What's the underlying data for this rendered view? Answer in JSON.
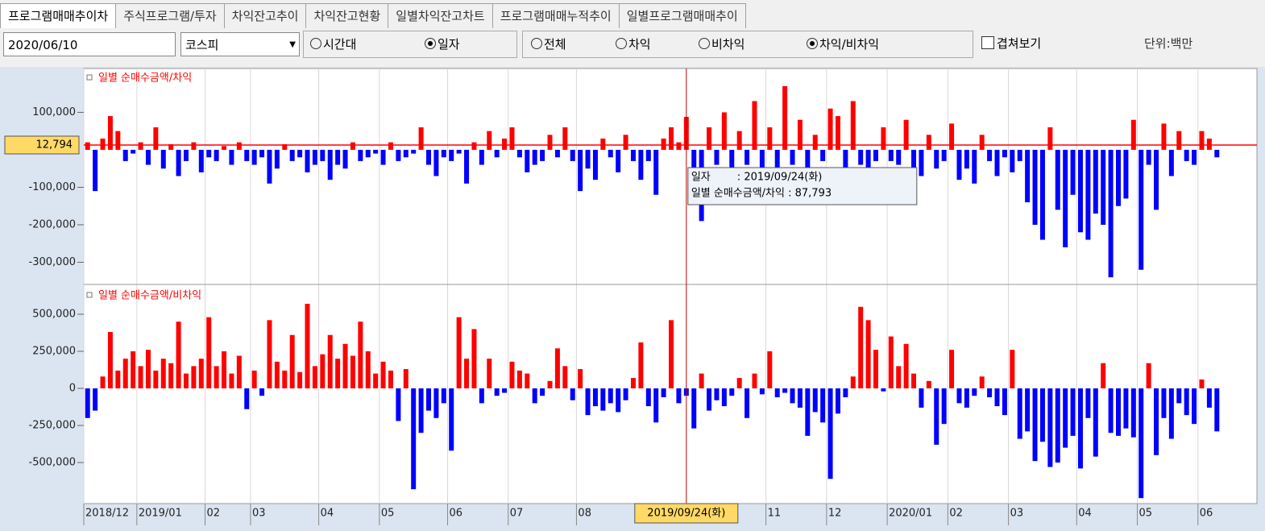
{
  "tabs": [
    "프로그램매매추이차",
    "주식프로그램/투자",
    "차익잔고추이",
    "차익잔고현황",
    "일별차익잔고차트",
    "프로그램매매누적추이",
    "일별프로그램매매추이"
  ],
  "controls": {
    "date": "2020/06/10",
    "market": "코스피",
    "period_options": [
      "시간대",
      "일자"
    ],
    "type_options": [
      "전체",
      "차익",
      "비차익",
      "차익/비차익"
    ],
    "overlay": "겹쳐보기",
    "unit": "단위:백만"
  },
  "chart_data": [
    {
      "type": "bar",
      "title": "일별 순매수금액/차익",
      "positive_color": "#ff0000",
      "negative_color": "#0000ff",
      "ylim": [
        -357000,
        217000
      ],
      "yticks": [
        {
          "value": 100000,
          "label": "100,000"
        },
        {
          "value": -100000,
          "label": "-100,000"
        },
        {
          "value": -200000,
          "label": "-200,000"
        },
        {
          "value": -300000,
          "label": "-300,000"
        }
      ],
      "current_value": 12794,
      "current_value_label": "12,794",
      "annotation": {
        "x_label": "2019/09/24(화)",
        "tooltip": [
          "일자        : 2019/09/24(화)",
          "일별 순매수금액/차익 : 87,793"
        ]
      },
      "values": [
        20000,
        -110000,
        30000,
        90000,
        50000,
        -30000,
        -10000,
        20000,
        -40000,
        60000,
        -50000,
        15000,
        -70000,
        -30000,
        20000,
        -60000,
        -20000,
        -30000,
        10000,
        -40000,
        20000,
        -30000,
        -40000,
        -20000,
        -90000,
        -50000,
        15000,
        -30000,
        -20000,
        -60000,
        -40000,
        -30000,
        -80000,
        -40000,
        -50000,
        20000,
        -30000,
        -20000,
        -10000,
        -40000,
        20000,
        -30000,
        -20000,
        -10000,
        60000,
        -40000,
        -70000,
        -20000,
        -30000,
        -10000,
        -90000,
        20000,
        -40000,
        50000,
        -20000,
        30000,
        60000,
        -20000,
        -60000,
        -40000,
        -30000,
        40000,
        -20000,
        60000,
        -30000,
        -110000,
        -50000,
        -80000,
        30000,
        -20000,
        -60000,
        40000,
        -30000,
        -80000,
        -30000,
        -120000,
        30000,
        60000,
        20000,
        87793,
        -50000,
        -190000,
        60000,
        -40000,
        100000,
        -50000,
        50000,
        -40000,
        130000,
        -60000,
        60000,
        -50000,
        170000,
        -40000,
        80000,
        -60000,
        40000,
        -30000,
        110000,
        90000,
        -60000,
        130000,
        -40000,
        -50000,
        -30000,
        60000,
        -30000,
        -40000,
        80000,
        -60000,
        -70000,
        40000,
        -50000,
        -30000,
        70000,
        -80000,
        -50000,
        -90000,
        40000,
        -30000,
        -70000,
        -20000,
        -60000,
        -30000,
        -140000,
        -200000,
        -240000,
        60000,
        -160000,
        -260000,
        -120000,
        -220000,
        -240000,
        -170000,
        -200000,
        -340000,
        -150000,
        -130000,
        80000,
        -320000,
        -40000,
        -160000,
        70000,
        -70000,
        50000,
        -30000,
        -40000,
        50000,
        30000,
        -20000
      ]
    },
    {
      "type": "bar",
      "title": "일별 순매수금액/비차익",
      "positive_color": "#ff0000",
      "negative_color": "#0000ff",
      "ylim": [
        -777000,
        690000
      ],
      "yticks": [
        {
          "value": 500000,
          "label": "500,000"
        },
        {
          "value": 250000,
          "label": "250,000"
        },
        0,
        {
          "value": -250000,
          "label": "-250,000"
        },
        {
          "value": -500000,
          "label": "-500,000"
        }
      ],
      "categories": [
        "2018/12",
        null,
        null,
        null,
        null,
        null,
        null,
        "2019/01",
        null,
        null,
        null,
        null,
        null,
        null,
        null,
        null,
        "02",
        null,
        null,
        null,
        null,
        null,
        "03",
        null,
        null,
        null,
        null,
        null,
        null,
        null,
        null,
        "04",
        null,
        null,
        null,
        null,
        null,
        null,
        null,
        "05",
        null,
        null,
        null,
        null,
        null,
        null,
        null,
        null,
        "06",
        null,
        null,
        null,
        null,
        null,
        null,
        null,
        "07",
        null,
        null,
        null,
        null,
        null,
        null,
        null,
        null,
        "08",
        null,
        null,
        null,
        null,
        null,
        null,
        null,
        null,
        null,
        null,
        null,
        null,
        null,
        null,
        null,
        null,
        null,
        null,
        null,
        null,
        null,
        null,
        null,
        null,
        "11",
        null,
        null,
        null,
        null,
        null,
        null,
        null,
        "12",
        null,
        null,
        null,
        null,
        null,
        null,
        null,
        "2020/01",
        null,
        null,
        null,
        null,
        null,
        null,
        null,
        "02",
        null,
        null,
        null,
        null,
        null,
        null,
        null,
        "03",
        null,
        null,
        null,
        null,
        null,
        null,
        null,
        null,
        "04",
        null,
        null,
        null,
        null,
        null,
        null,
        null,
        "05",
        null,
        null,
        null,
        null,
        null,
        null,
        null,
        "06",
        null,
        null
      ],
      "values": [
        -200000,
        -150000,
        80000,
        380000,
        120000,
        200000,
        250000,
        150000,
        260000,
        120000,
        200000,
        170000,
        450000,
        100000,
        150000,
        200000,
        480000,
        150000,
        250000,
        100000,
        220000,
        -140000,
        120000,
        -50000,
        460000,
        180000,
        120000,
        360000,
        110000,
        570000,
        150000,
        230000,
        360000,
        200000,
        300000,
        220000,
        450000,
        250000,
        100000,
        180000,
        120000,
        -220000,
        130000,
        -680000,
        -300000,
        -150000,
        -200000,
        -100000,
        -420000,
        480000,
        200000,
        400000,
        -100000,
        200000,
        -50000,
        -30000,
        180000,
        120000,
        100000,
        -100000,
        -50000,
        50000,
        270000,
        150000,
        -80000,
        130000,
        -180000,
        -120000,
        -150000,
        -100000,
        -160000,
        -80000,
        70000,
        310000,
        -120000,
        -230000,
        -60000,
        460000,
        -100000,
        -50000,
        -270000,
        100000,
        -150000,
        -80000,
        -120000,
        -50000,
        70000,
        -200000,
        100000,
        -40000,
        250000,
        -60000,
        -30000,
        -100000,
        -130000,
        -320000,
        -160000,
        -230000,
        -610000,
        -170000,
        -60000,
        80000,
        550000,
        460000,
        260000,
        -20000,
        350000,
        150000,
        300000,
        100000,
        -130000,
        50000,
        -380000,
        -240000,
        260000,
        -100000,
        -130000,
        -50000,
        80000,
        -60000,
        -120000,
        -180000,
        260000,
        -340000,
        -290000,
        -490000,
        -360000,
        -530000,
        -500000,
        -400000,
        -320000,
        -540000,
        -200000,
        -460000,
        170000,
        -300000,
        -320000,
        -270000,
        -330000,
        -740000,
        170000,
        -450000,
        -200000,
        -340000,
        -100000,
        -180000,
        -240000,
        60000,
        -130000,
        -290000
      ]
    }
  ]
}
